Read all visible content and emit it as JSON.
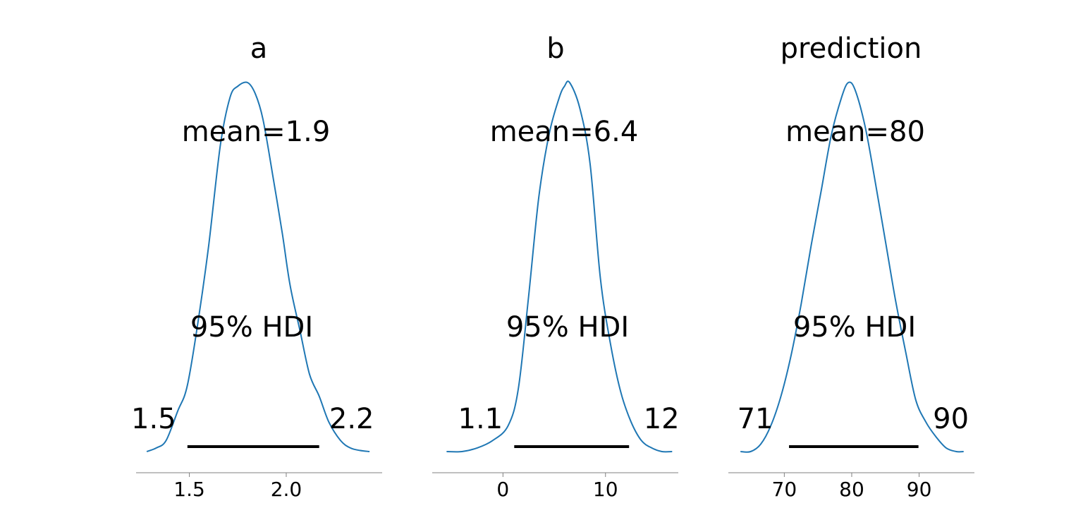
{
  "chart_data": [
    {
      "type": "area",
      "title": "a",
      "mean_label": "mean=1.9",
      "hdi_label": "95% HDI",
      "hdi_low_label": "1.5",
      "hdi_high_label": "2.2",
      "hdi": [
        1.49,
        2.17
      ],
      "xlim": [
        1.225,
        2.495
      ],
      "xticks": [
        1.5,
        2.0
      ],
      "xtick_labels": [
        "1.5",
        "2.0"
      ],
      "curve": {
        "x": [
          1.28,
          1.33,
          1.38,
          1.44,
          1.49,
          1.55,
          1.6,
          1.66,
          1.71,
          1.75,
          1.8,
          1.84,
          1.88,
          1.93,
          1.98,
          2.02,
          2.07,
          2.12,
          2.17,
          2.22,
          2.28,
          2.33,
          2.38,
          2.43
        ],
        "y": [
          0.0,
          0.01,
          0.03,
          0.11,
          0.18,
          0.37,
          0.56,
          0.83,
          0.96,
          0.99,
          1.0,
          0.97,
          0.9,
          0.75,
          0.59,
          0.45,
          0.33,
          0.21,
          0.15,
          0.08,
          0.03,
          0.01,
          0.003,
          0.0
        ]
      },
      "line_color": "#1f77b4",
      "hdi_color": "#000000"
    },
    {
      "type": "area",
      "title": "b",
      "mean_label": "mean=6.4",
      "hdi_label": "95% HDI",
      "hdi_low_label": "1.1",
      "hdi_high_label": "12",
      "hdi": [
        1.1,
        12.3
      ],
      "xlim": [
        -6.9,
        17.1
      ],
      "xticks": [
        0,
        10
      ],
      "xtick_labels": [
        "0",
        "10"
      ],
      "curve": {
        "x": [
          -5.5,
          -4.0,
          -2.5,
          -1.0,
          0.5,
          1.5,
          2.5,
          3.5,
          4.5,
          5.5,
          6.0,
          6.5,
          7.5,
          8.5,
          9.5,
          10.5,
          11.5,
          12.5,
          13.5,
          14.5,
          15.5,
          16.5
        ],
        "y": [
          0.0,
          0.0,
          0.01,
          0.03,
          0.07,
          0.17,
          0.42,
          0.69,
          0.86,
          0.96,
          0.99,
          1.0,
          0.93,
          0.78,
          0.47,
          0.29,
          0.16,
          0.08,
          0.03,
          0.01,
          0.0,
          0.0
        ]
      },
      "line_color": "#1f77b4",
      "hdi_color": "#000000"
    },
    {
      "type": "area",
      "title": "prediction",
      "mean_label": "mean=80",
      "hdi_label": "95% HDI",
      "hdi_low_label": "71",
      "hdi_high_label": "90",
      "hdi": [
        70.7,
        89.9
      ],
      "xlim": [
        61.7,
        98.2
      ],
      "xticks": [
        70,
        80,
        90
      ],
      "xtick_labels": [
        "70",
        "80",
        "90"
      ],
      "curve": {
        "x": [
          63.5,
          65.0,
          66.5,
          68.0,
          69.5,
          71.0,
          72.5,
          74.0,
          75.5,
          77.0,
          78.5,
          79.5,
          80.5,
          82.0,
          83.5,
          85.0,
          86.5,
          88.0,
          89.5,
          91.0,
          92.5,
          94.0,
          95.5,
          96.6
        ],
        "y": [
          0.0,
          0.0,
          0.02,
          0.07,
          0.15,
          0.26,
          0.4,
          0.56,
          0.71,
          0.86,
          0.96,
          1.0,
          0.98,
          0.88,
          0.73,
          0.57,
          0.41,
          0.27,
          0.14,
          0.08,
          0.04,
          0.01,
          0.0,
          0.0
        ]
      },
      "line_color": "#1f77b4",
      "hdi_color": "#000000"
    }
  ]
}
